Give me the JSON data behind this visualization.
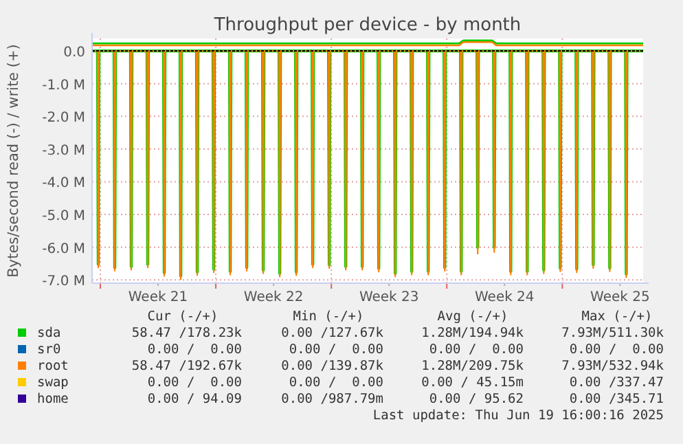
{
  "chart_data": {
    "type": "line",
    "title": "Throughput per device - by month",
    "ylabel": "Bytes/second read (-) / write (+)",
    "xlim": [
      "2025-05-18T12:00",
      "2025-06-20T21:36"
    ],
    "ylim": [
      -7100000,
      380000
    ],
    "xticks": [
      {
        "value": "2025-05-19",
        "label": null
      },
      {
        "value": "2025-05-22T12:00",
        "label": "Week 21"
      },
      {
        "value": "2025-05-26",
        "label": null
      },
      {
        "value": "2025-05-29T12:00",
        "label": "Week 22"
      },
      {
        "value": "2025-06-02",
        "label": null
      },
      {
        "value": "2025-06-05T12:00",
        "label": "Week 23"
      },
      {
        "value": "2025-06-09",
        "label": null
      },
      {
        "value": "2025-06-12T12:00",
        "label": "Week 24"
      },
      {
        "value": "2025-06-16",
        "label": null
      },
      {
        "value": "2025-06-19T12:00",
        "label": "Week 25"
      }
    ],
    "yticks": [
      {
        "value": 0,
        "label": "0.0"
      },
      {
        "value": -1000000,
        "label": "-1.0 M"
      },
      {
        "value": -2000000,
        "label": "-2.0 M"
      },
      {
        "value": -3000000,
        "label": "-3.0 M"
      },
      {
        "value": -4000000,
        "label": "-4.0 M"
      },
      {
        "value": -5000000,
        "label": "-5.0 M"
      },
      {
        "value": -6000000,
        "label": "-6.0 M"
      },
      {
        "value": -7000000,
        "label": "-7.0 M"
      }
    ],
    "grid": true,
    "legend": "bottom",
    "ref_lines": [
      {
        "axis": "y",
        "value": 0,
        "color": "#000000",
        "line_style": "dashed"
      }
    ],
    "x": [
      "2025-05-18T12:00",
      "2025-05-18T20:00",
      "2025-05-18T21:00",
      "2025-05-18T22:00",
      "2025-05-19T20:00",
      "2025-05-19T21:00",
      "2025-05-19T22:00",
      "2025-05-20T20:00",
      "2025-05-20T21:00",
      "2025-05-20T22:00",
      "2025-05-21T20:00",
      "2025-05-21T21:00",
      "2025-05-21T22:00",
      "2025-05-22T20:00",
      "2025-05-22T21:00",
      "2025-05-22T22:00",
      "2025-05-23T20:00",
      "2025-05-23T21:00",
      "2025-05-23T22:00",
      "2025-05-24T20:00",
      "2025-05-24T21:00",
      "2025-05-24T22:00",
      "2025-05-25T20:00",
      "2025-05-25T21:00",
      "2025-05-25T22:00",
      "2025-05-26T20:00",
      "2025-05-26T21:00",
      "2025-05-26T22:00",
      "2025-05-27T20:00",
      "2025-05-27T21:00",
      "2025-05-27T22:00",
      "2025-05-28T20:00",
      "2025-05-28T21:00",
      "2025-05-28T22:00",
      "2025-05-29T20:00",
      "2025-05-29T21:00",
      "2025-05-29T22:00",
      "2025-05-30T20:00",
      "2025-05-30T21:00",
      "2025-05-30T22:00",
      "2025-05-31T20:00",
      "2025-05-31T21:00",
      "2025-05-31T22:00",
      "2025-06-01T20:00",
      "2025-06-01T21:00",
      "2025-06-01T22:00",
      "2025-06-02T20:00",
      "2025-06-02T21:00",
      "2025-06-02T22:00",
      "2025-06-03T20:00",
      "2025-06-03T21:00",
      "2025-06-03T22:00",
      "2025-06-04T20:00",
      "2025-06-04T21:00",
      "2025-06-04T22:00",
      "2025-06-05T20:00",
      "2025-06-05T21:00",
      "2025-06-05T22:00",
      "2025-06-06T20:00",
      "2025-06-06T21:00",
      "2025-06-06T22:00",
      "2025-06-07T20:00",
      "2025-06-07T21:00",
      "2025-06-07T22:00",
      "2025-06-08T20:00",
      "2025-06-08T21:00",
      "2025-06-08T22:00",
      "2025-06-09T20:00",
      "2025-06-09T21:00",
      "2025-06-09T22:00",
      "2025-06-10T20:00",
      "2025-06-10T21:00",
      "2025-06-10T22:00",
      "2025-06-11T20:00",
      "2025-06-11T21:00",
      "2025-06-11T22:00",
      "2025-06-12T20:00",
      "2025-06-12T21:00",
      "2025-06-12T22:00",
      "2025-06-13T20:00",
      "2025-06-13T21:00",
      "2025-06-13T22:00",
      "2025-06-14T20:00",
      "2025-06-14T21:00",
      "2025-06-14T22:00",
      "2025-06-15T20:00",
      "2025-06-15T21:00",
      "2025-06-15T22:00",
      "2025-06-16T20:00",
      "2025-06-16T21:00",
      "2025-06-16T22:00",
      "2025-06-17T20:00",
      "2025-06-17T21:00",
      "2025-06-17T22:00",
      "2025-06-18T20:00",
      "2025-06-18T21:00",
      "2025-06-18T22:00",
      "2025-06-19T20:00",
      "2025-06-19T21:00",
      "2025-06-19T22:00",
      "2025-06-20T21:36"
    ],
    "series": [
      {
        "name": "sda",
        "color": "#00cc00",
        "values": [
          0,
          0,
          -6520000,
          0,
          0,
          -6620000,
          0,
          0,
          -6590000,
          0,
          0,
          -6520000,
          0,
          0,
          -6780000,
          0,
          0,
          -6880000,
          0,
          0,
          -6760000,
          0,
          0,
          -6670000,
          0,
          0,
          -6740000,
          0,
          0,
          -6620000,
          0,
          0,
          -6700000,
          0,
          0,
          -6800000,
          0,
          0,
          -6760000,
          0,
          0,
          -6520000,
          0,
          0,
          -6540000,
          0,
          0,
          -6590000,
          0,
          0,
          -6590000,
          0,
          0,
          -6650000,
          0,
          0,
          -6800000,
          0,
          0,
          -6740000,
          0,
          0,
          -6740000,
          0,
          0,
          -6620000,
          0,
          0,
          -6740000,
          0,
          0,
          -6000000,
          0,
          0,
          -6000000,
          0,
          0,
          -6740000,
          0,
          0,
          -6740000,
          0,
          0,
          -6700000,
          0,
          0,
          -6640000,
          0,
          0,
          -6670000,
          0,
          0,
          -6540000,
          0,
          0,
          -6640000,
          0,
          0,
          -6820000,
          0,
          0
        ]
      },
      {
        "name": "sr0",
        "color": "#0066b3",
        "values": [
          null,
          null,
          null,
          null,
          null,
          null,
          null,
          null,
          null,
          null,
          null,
          null,
          null,
          null,
          null,
          null,
          null,
          null,
          null,
          null,
          null,
          null,
          null,
          null,
          null,
          null,
          null,
          null,
          null,
          null,
          null,
          null,
          null,
          null,
          null,
          null,
          null,
          null,
          null,
          null,
          null,
          null,
          null,
          null,
          null,
          null,
          null,
          null,
          null,
          null,
          null,
          null,
          null,
          null,
          null,
          null,
          null,
          null,
          null,
          null,
          null,
          null,
          null,
          null,
          null,
          null,
          null,
          null,
          null,
          null,
          null,
          null,
          null,
          null,
          null,
          null,
          null,
          null,
          null,
          null,
          null,
          null,
          null,
          null,
          null,
          null,
          null,
          null,
          null,
          null,
          null,
          null,
          null,
          null,
          null,
          null,
          null,
          null,
          null,
          null,
          null
        ]
      },
      {
        "name": "root",
        "color": "#ff8000",
        "values": [
          0,
          0,
          -6620000,
          0,
          0,
          -6720000,
          0,
          0,
          -6690000,
          0,
          0,
          -6620000,
          0,
          0,
          -6880000,
          0,
          0,
          -6980000,
          0,
          0,
          -6860000,
          0,
          0,
          -6770000,
          0,
          0,
          -6840000,
          0,
          0,
          -6720000,
          0,
          0,
          -6800000,
          0,
          0,
          -6900000,
          0,
          0,
          -6860000,
          0,
          0,
          -6620000,
          0,
          0,
          -6640000,
          0,
          0,
          -6690000,
          0,
          0,
          -6690000,
          0,
          0,
          -6750000,
          0,
          0,
          -6900000,
          0,
          0,
          -6840000,
          0,
          0,
          -6840000,
          0,
          0,
          -6720000,
          0,
          0,
          -6840000,
          0,
          0,
          -6200000,
          0,
          0,
          -6150000,
          0,
          0,
          -6840000,
          0,
          0,
          -6840000,
          0,
          0,
          -6800000,
          0,
          0,
          -6740000,
          0,
          0,
          -6770000,
          0,
          0,
          -6640000,
          0,
          0,
          -6740000,
          0,
          0,
          -6920000,
          0,
          0
        ]
      },
      {
        "name": "swap",
        "color": "#ffcc00",
        "values": [
          null,
          null,
          null,
          null,
          null,
          null,
          null,
          null,
          null,
          null,
          null,
          null,
          null,
          null,
          null,
          null,
          null,
          null,
          null,
          null,
          null,
          null,
          null,
          null,
          null,
          null,
          null,
          null,
          null,
          null,
          null,
          null,
          null,
          null,
          null,
          null,
          null,
          null,
          null,
          null,
          null,
          null,
          null,
          null,
          null,
          null,
          null,
          null,
          null,
          null,
          null,
          null,
          null,
          null,
          null,
          null,
          null,
          null,
          null,
          null,
          null,
          null,
          null,
          null,
          null,
          null,
          null,
          null,
          null,
          null,
          null,
          null,
          null,
          null,
          null,
          null,
          null,
          null,
          null,
          null,
          null,
          null,
          null,
          null,
          null,
          null,
          null,
          null,
          null,
          null,
          null,
          null,
          null,
          null,
          null,
          null,
          null,
          null,
          null,
          null,
          null
        ]
      },
      {
        "name": "home",
        "color": "#330099",
        "values": [
          null,
          null,
          null,
          null,
          null,
          null,
          null,
          null,
          null,
          null,
          null,
          null,
          null,
          null,
          null,
          null,
          null,
          null,
          null,
          null,
          null,
          null,
          null,
          null,
          null,
          null,
          null,
          null,
          null,
          null,
          null,
          null,
          null,
          null,
          null,
          null,
          null,
          null,
          null,
          null,
          null,
          null,
          null,
          null,
          null,
          null,
          null,
          null,
          null,
          null,
          null,
          null,
          null,
          null,
          null,
          null,
          null,
          null,
          null,
          null,
          null,
          null,
          null,
          null,
          null,
          null,
          null,
          null,
          null,
          null,
          null,
          null,
          null,
          null,
          null,
          null,
          null,
          null,
          null,
          null,
          null,
          null,
          null,
          null,
          null,
          null,
          null,
          null,
          null,
          null,
          null,
          null,
          null,
          null,
          null,
          null,
          null,
          null,
          null,
          null,
          null
        ]
      },
      {
        "color": "#00cc00",
        "x": [
          "2025-05-18T12:00",
          "2025-06-09T18:00",
          "2025-06-10T00:00",
          "2025-06-11T18:00",
          "2025-06-12T00:00",
          "2025-06-20T21:36"
        ],
        "values": [
          230000,
          230000,
          320000,
          320000,
          230000,
          230000
        ]
      },
      {
        "color": "#ff8000",
        "x": [
          "2025-05-18T12:00",
          "2025-06-09T18:00",
          "2025-06-10T00:00",
          "2025-06-11T18:00",
          "2025-06-12T00:00",
          "2025-06-20T21:36"
        ],
        "values": [
          170000,
          170000,
          270000,
          270000,
          170000,
          170000
        ]
      }
    ],
    "annotations": [
      "Cur (-/+)",
      "Min (-/+)",
      "Avg (-/+)",
      "Max (-/+)",
      "58.47 /178.23k",
      "0.00 /127.67k",
      "1.28M/194.94k",
      "7.93M/511.30k",
      "0.00 /  0.00",
      "0.00 /  0.00",
      "0.00 /  0.00",
      "0.00 /  0.00",
      "58.47 /192.67k",
      "0.00 /139.87k",
      "1.28M/209.75k",
      "7.93M/532.94k",
      "0.00 /  0.00",
      "0.00 /  0.00",
      "0.00 / 45.15m",
      "0.00 /337.47",
      "0.00 / 94.09",
      "0.00 /987.79m",
      "0.00 / 95.62",
      "0.00 /345.71",
      "Last update: Thu Jun 19 16:00:16 2025"
    ]
  }
}
